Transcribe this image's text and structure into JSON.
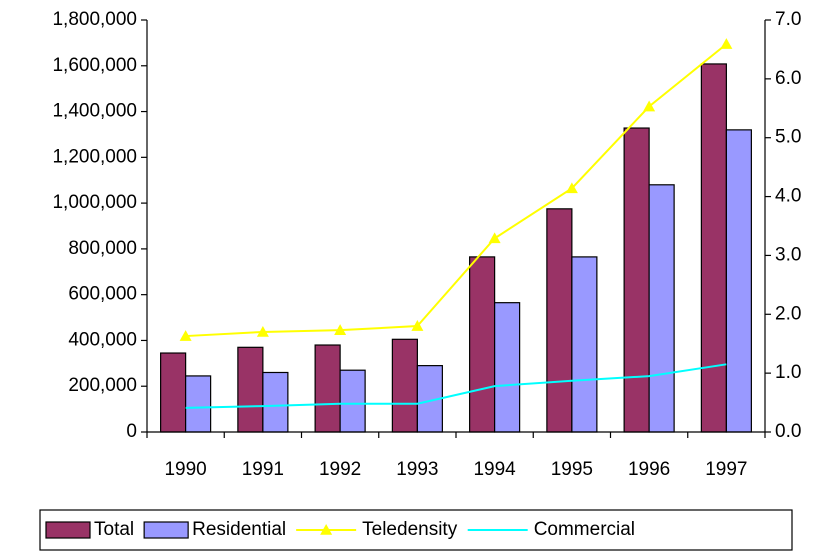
{
  "chart_data": {
    "type": "bar",
    "categories": [
      "1990",
      "1991",
      "1992",
      "1993",
      "1994",
      "1995",
      "1996",
      "1997"
    ],
    "series": [
      {
        "name": "Total",
        "type": "bar",
        "color": "#993366",
        "values": [
          345000,
          370000,
          380000,
          405000,
          765000,
          975000,
          1328000,
          1608000
        ]
      },
      {
        "name": "Residential",
        "type": "bar",
        "color": "#9999ff",
        "values": [
          245000,
          260000,
          270000,
          290000,
          565000,
          765000,
          1080000,
          1320000
        ]
      },
      {
        "name": "Teledensity",
        "type": "line",
        "marker": "triangle",
        "axis": "y2",
        "color": "#ffff00",
        "values": [
          1.63,
          1.7,
          1.73,
          1.8,
          3.29,
          4.14,
          5.53,
          6.59
        ]
      },
      {
        "name": "Commercial",
        "type": "line",
        "axis": "y2",
        "color": "#00ffff",
        "values": [
          0.41,
          0.44,
          0.48,
          0.48,
          0.78,
          0.87,
          0.95,
          1.15
        ]
      }
    ],
    "ylim": [
      0,
      1800000
    ],
    "yticks": [
      0,
      {
        "value": 200000,
        "label": "200,000"
      },
      {
        "value": 400000,
        "label": "400,000"
      },
      {
        "value": 600000,
        "label": "600,000"
      },
      {
        "value": 800000,
        "label": "800,000"
      },
      {
        "value": 1000000,
        "label": "1,000,000"
      },
      {
        "value": 1200000,
        "label": "1,200,000"
      },
      {
        "value": 1400000,
        "label": "1,400,000"
      },
      {
        "value": 1600000,
        "label": "1,600,000"
      },
      {
        "value": 1800000,
        "label": "1,800,000"
      }
    ],
    "y2lim": [
      0,
      7
    ],
    "y2ticks": [
      {
        "value": 0,
        "label": "0.0"
      },
      {
        "value": 1,
        "label": "1.0"
      },
      {
        "value": 2,
        "label": "2.0"
      },
      {
        "value": 3,
        "label": "3.0"
      },
      {
        "value": 4,
        "label": "4.0"
      },
      {
        "value": 5,
        "label": "5.0"
      },
      {
        "value": 6,
        "label": "6.0"
      },
      {
        "value": 7,
        "label": "7.0"
      }
    ],
    "grid": false,
    "legend": "bottom"
  }
}
